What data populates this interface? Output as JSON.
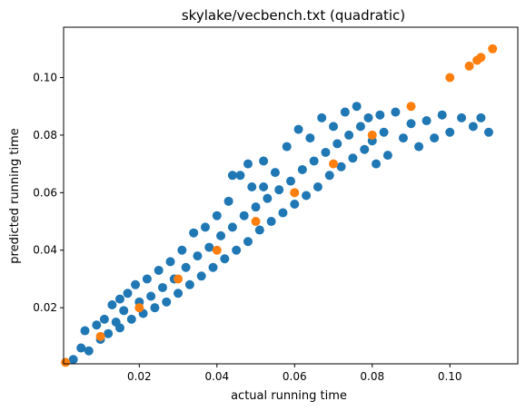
{
  "chart_data": {
    "type": "scatter",
    "title": "skylake/vecbench.txt (quadratic)",
    "xlabel": "actual running time",
    "ylabel": "predicted running time",
    "xlim": [
      0.0005,
      0.1175
    ],
    "ylim": [
      0.0005,
      0.1175
    ],
    "xticks": [
      0.02,
      0.04,
      0.06,
      0.08,
      0.1
    ],
    "yticks": [
      0.02,
      0.04,
      0.06,
      0.08,
      0.1
    ],
    "xtick_labels": [
      "0.02",
      "0.04",
      "0.06",
      "0.08",
      "0.10"
    ],
    "ytick_labels": [
      "0.02",
      "0.04",
      "0.06",
      "0.08",
      "0.10"
    ],
    "grid": false,
    "series": [
      {
        "color": "#1f77b4",
        "points": [
          [
            0.003,
            0.002
          ],
          [
            0.005,
            0.006
          ],
          [
            0.006,
            0.012
          ],
          [
            0.007,
            0.005
          ],
          [
            0.009,
            0.014
          ],
          [
            0.01,
            0.009
          ],
          [
            0.011,
            0.016
          ],
          [
            0.012,
            0.011
          ],
          [
            0.013,
            0.021
          ],
          [
            0.014,
            0.015
          ],
          [
            0.015,
            0.013
          ],
          [
            0.015,
            0.023
          ],
          [
            0.016,
            0.019
          ],
          [
            0.017,
            0.025
          ],
          [
            0.018,
            0.016
          ],
          [
            0.019,
            0.028
          ],
          [
            0.02,
            0.022
          ],
          [
            0.021,
            0.018
          ],
          [
            0.022,
            0.03
          ],
          [
            0.023,
            0.024
          ],
          [
            0.024,
            0.02
          ],
          [
            0.025,
            0.033
          ],
          [
            0.026,
            0.027
          ],
          [
            0.027,
            0.022
          ],
          [
            0.028,
            0.036
          ],
          [
            0.029,
            0.03
          ],
          [
            0.03,
            0.025
          ],
          [
            0.031,
            0.04
          ],
          [
            0.032,
            0.034
          ],
          [
            0.033,
            0.028
          ],
          [
            0.034,
            0.046
          ],
          [
            0.035,
            0.038
          ],
          [
            0.036,
            0.031
          ],
          [
            0.037,
            0.048
          ],
          [
            0.038,
            0.041
          ],
          [
            0.039,
            0.034
          ],
          [
            0.04,
            0.052
          ],
          [
            0.041,
            0.045
          ],
          [
            0.042,
            0.037
          ],
          [
            0.043,
            0.057
          ],
          [
            0.044,
            0.048
          ],
          [
            0.045,
            0.04
          ],
          [
            0.046,
            0.066
          ],
          [
            0.047,
            0.052
          ],
          [
            0.048,
            0.043
          ],
          [
            0.049,
            0.062
          ],
          [
            0.05,
            0.055
          ],
          [
            0.051,
            0.047
          ],
          [
            0.052,
            0.071
          ],
          [
            0.053,
            0.058
          ],
          [
            0.054,
            0.05
          ],
          [
            0.055,
            0.067
          ],
          [
            0.056,
            0.061
          ],
          [
            0.057,
            0.053
          ],
          [
            0.058,
            0.076
          ],
          [
            0.059,
            0.064
          ],
          [
            0.06,
            0.056
          ],
          [
            0.061,
            0.082
          ],
          [
            0.062,
            0.068
          ],
          [
            0.063,
            0.059
          ],
          [
            0.064,
            0.079
          ],
          [
            0.065,
            0.071
          ],
          [
            0.066,
            0.062
          ],
          [
            0.067,
            0.086
          ],
          [
            0.068,
            0.074
          ],
          [
            0.069,
            0.066
          ],
          [
            0.07,
            0.083
          ],
          [
            0.071,
            0.077
          ],
          [
            0.072,
            0.069
          ],
          [
            0.073,
            0.088
          ],
          [
            0.074,
            0.08
          ],
          [
            0.075,
            0.072
          ],
          [
            0.076,
            0.09
          ],
          [
            0.077,
            0.083
          ],
          [
            0.078,
            0.075
          ],
          [
            0.079,
            0.086
          ],
          [
            0.08,
            0.078
          ],
          [
            0.081,
            0.07
          ],
          [
            0.082,
            0.087
          ],
          [
            0.083,
            0.081
          ],
          [
            0.084,
            0.073
          ],
          [
            0.086,
            0.088
          ],
          [
            0.088,
            0.079
          ],
          [
            0.09,
            0.084
          ],
          [
            0.092,
            0.076
          ],
          [
            0.094,
            0.085
          ],
          [
            0.096,
            0.079
          ],
          [
            0.098,
            0.087
          ],
          [
            0.1,
            0.081
          ],
          [
            0.103,
            0.086
          ],
          [
            0.106,
            0.083
          ],
          [
            0.108,
            0.086
          ],
          [
            0.11,
            0.081
          ],
          [
            0.044,
            0.066
          ],
          [
            0.048,
            0.07
          ],
          [
            0.052,
            0.062
          ]
        ]
      },
      {
        "color": "#ff7f0e",
        "points": [
          [
            0.001,
            0.001
          ],
          [
            0.01,
            0.01
          ],
          [
            0.02,
            0.02
          ],
          [
            0.03,
            0.03
          ],
          [
            0.04,
            0.04
          ],
          [
            0.05,
            0.05
          ],
          [
            0.06,
            0.06
          ],
          [
            0.07,
            0.07
          ],
          [
            0.08,
            0.08
          ],
          [
            0.09,
            0.09
          ],
          [
            0.1,
            0.1
          ],
          [
            0.105,
            0.104
          ],
          [
            0.107,
            0.106
          ],
          [
            0.108,
            0.107
          ],
          [
            0.111,
            0.11
          ]
        ]
      }
    ]
  }
}
